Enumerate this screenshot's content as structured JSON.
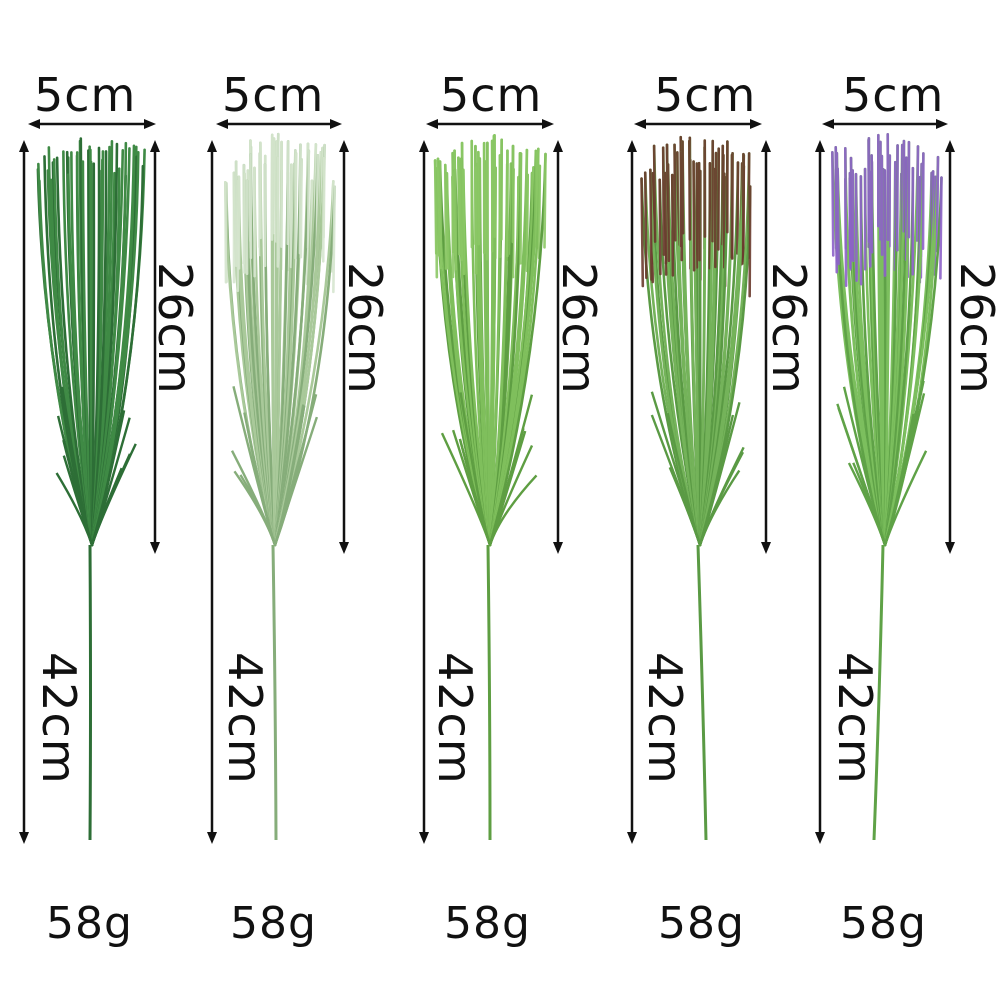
{
  "products": [
    {
      "width_label": "5cm",
      "head_label": "26cm",
      "total_label": "42cm",
      "weight_label": "58g",
      "variant": "dark-green",
      "colors": {
        "leaf": "#3f8a45",
        "leaf_dark": "#2d6e36",
        "tip": "#3f8a45"
      }
    },
    {
      "width_label": "5cm",
      "head_label": "26cm",
      "total_label": "42cm",
      "weight_label": "58g",
      "variant": "frosted-pale-green",
      "colors": {
        "leaf": "#a9c99a",
        "leaf_dark": "#86ad7a",
        "tip": "#d6e6cf"
      }
    },
    {
      "width_label": "5cm",
      "head_label": "26cm",
      "total_label": "42cm",
      "weight_label": "58g",
      "variant": "light-green",
      "colors": {
        "leaf": "#7fbf5c",
        "leaf_dark": "#5e9e42",
        "tip": "#8cc866"
      }
    },
    {
      "width_label": "5cm",
      "head_label": "26cm",
      "total_label": "42cm",
      "weight_label": "58g",
      "variant": "green-brown-tips",
      "colors": {
        "leaf": "#74b35a",
        "leaf_dark": "#5a9a44",
        "tip": "#6a3b2e"
      }
    },
    {
      "width_label": "5cm",
      "head_label": "26cm",
      "total_label": "42cm",
      "weight_label": "58g",
      "variant": "green-purple-tips",
      "colors": {
        "leaf": "#7cbf5e",
        "leaf_dark": "#5fa247",
        "tip": "#8d62c9"
      }
    }
  ]
}
